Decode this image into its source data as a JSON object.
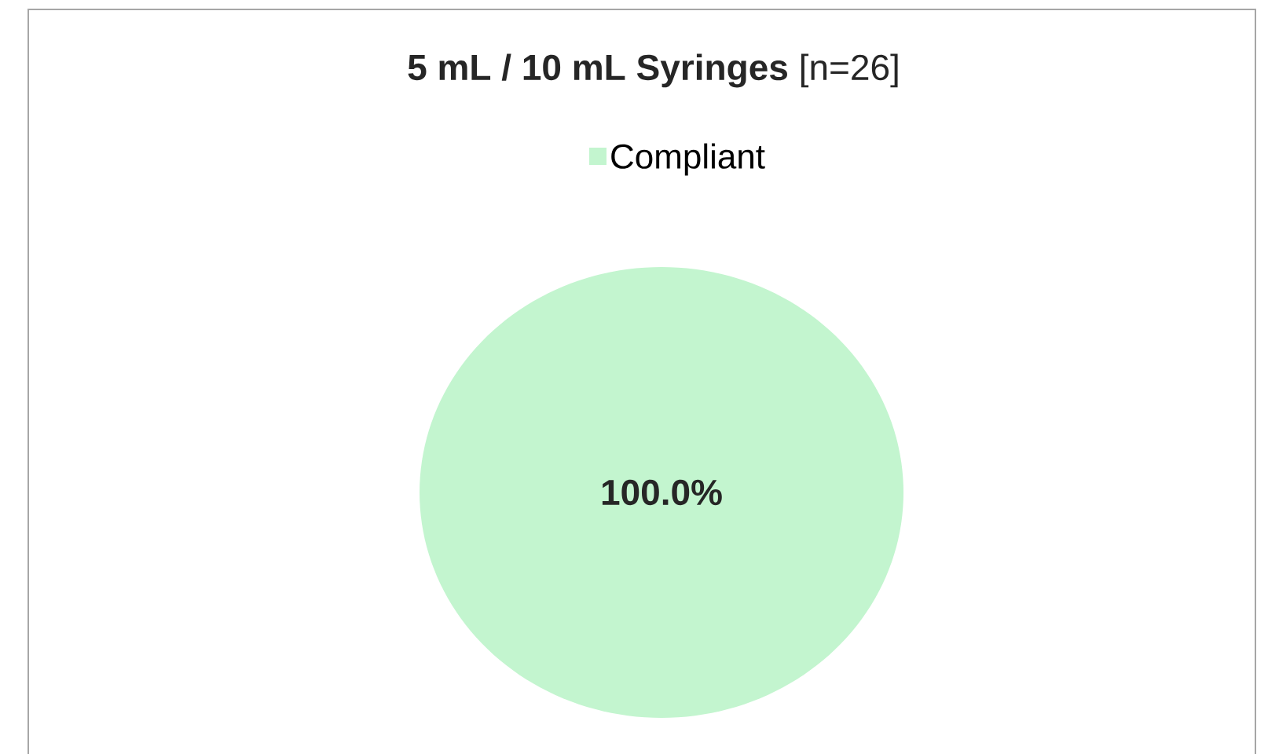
{
  "chart_data": {
    "type": "pie",
    "title": "**5 mL / 10 mL Syringes** [n=26]",
    "categories": [
      "Compliant"
    ],
    "values": [
      100
    ],
    "colors": [
      "#c3f5cf"
    ],
    "value_labels": [
      "100.0%"
    ],
    "legend": "top"
  }
}
